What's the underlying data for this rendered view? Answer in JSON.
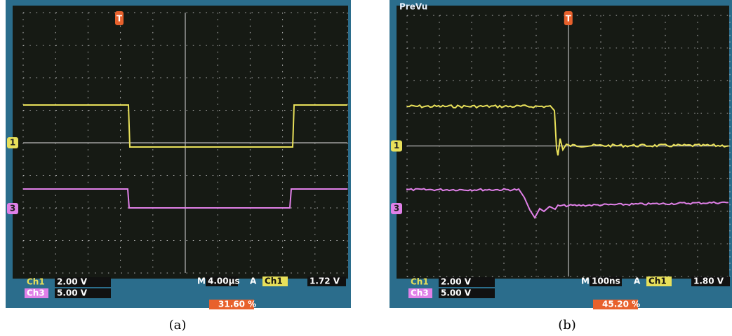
{
  "panels": [
    {
      "caption": "(a)",
      "channels": [
        {
          "label": "Ch1",
          "scale": "2.00 V"
        },
        {
          "label": "Ch3",
          "scale": "5.00 V"
        }
      ],
      "timebase": {
        "label": "M",
        "value": "4.00µs"
      },
      "trigger": {
        "label": "A",
        "source": "Ch1",
        "level": "1.72 V"
      },
      "trigger_position": "31.60 %",
      "markers": {
        "trigger": "T",
        "ch1": "1",
        "ch3": "3"
      }
    },
    {
      "caption": "(b)",
      "status": "PreVu",
      "channels": [
        {
          "label": "Ch1",
          "scale": "2.00 V"
        },
        {
          "label": "Ch3",
          "scale": "5.00 V"
        }
      ],
      "timebase": {
        "label": "M",
        "value": "100ns"
      },
      "trigger": {
        "label": "A",
        "source": "Ch1",
        "level": "1.80 V"
      },
      "trigger_position": "45.20 %",
      "markers": {
        "trigger": "T",
        "ch1": "1",
        "ch3": "3"
      }
    }
  ]
}
